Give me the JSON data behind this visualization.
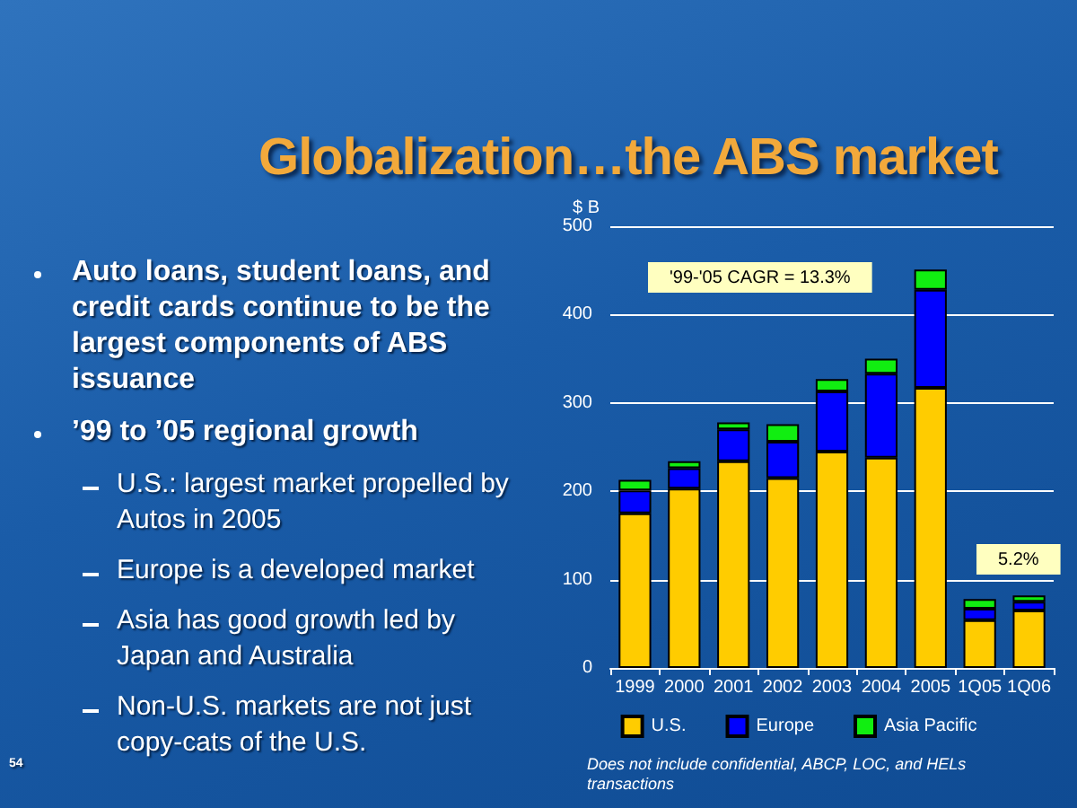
{
  "chart_data": [
    {
      "type": "other",
      "annotations": [
        "Auto loans, student loans, and credit cards continue to be the largest components of ABS issuance",
        "’99 to ’05 regional growth",
        "U.S.: largest market propelled by Autos in 2005",
        "Europe is a developed market",
        "Asia has good growth led by Japan and Australia",
        "Non-U.S. markets are not just copy-cats of the U.S.",
        "54"
      ]
    },
    {
      "type": "bar",
      "title": "Globalization…the ABS market",
      "ylabel": "$ B",
      "categories": [
        "1999",
        "2000",
        "2001",
        "2002",
        "2003",
        "2004",
        "2005",
        "1Q05",
        "1Q06"
      ],
      "stacked": true,
      "series": [
        {
          "name": "U.S.",
          "color": "#ffcc00",
          "values": [
            175,
            203,
            234,
            215,
            245,
            238,
            317,
            54,
            65
          ]
        },
        {
          "name": "Europe",
          "color": "#0000ff",
          "values": [
            26,
            23,
            36,
            41,
            68,
            95,
            111,
            13,
            10
          ]
        },
        {
          "name": "Asia Pacific",
          "color": "#11ee11",
          "values": [
            12,
            8,
            8,
            20,
            14,
            17,
            23,
            11,
            7
          ]
        }
      ],
      "ylim": [
        0,
        500
      ],
      "yticks": [
        0,
        100,
        200,
        300,
        400,
        500
      ],
      "grid": "y",
      "legend": "bottom",
      "annotations": [
        "'99-'05 CAGR = 13.3%",
        "5.2%",
        "Does not include confidential, ABCP, LOC, and HELs transactions"
      ]
    }
  ]
}
